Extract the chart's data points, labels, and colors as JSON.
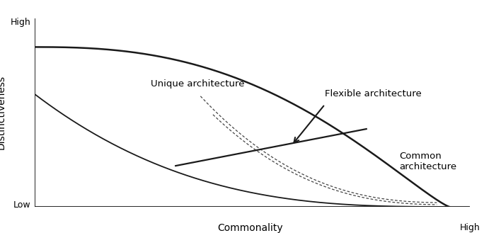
{
  "title": "",
  "xlabel": "Commonality",
  "ylabel": "Distinctiveness",
  "y_high_label": "High",
  "y_low_label": "Low",
  "x_high_label": "High",
  "label_unique": "Unique architecture",
  "label_flexible": "Flexible architecture",
  "label_common": "Common\narchitecture",
  "bg_color": "#ffffff",
  "curve_color": "#1a1a1a",
  "dotted_color": "#444444",
  "arrow_color": "#1a1a1a"
}
